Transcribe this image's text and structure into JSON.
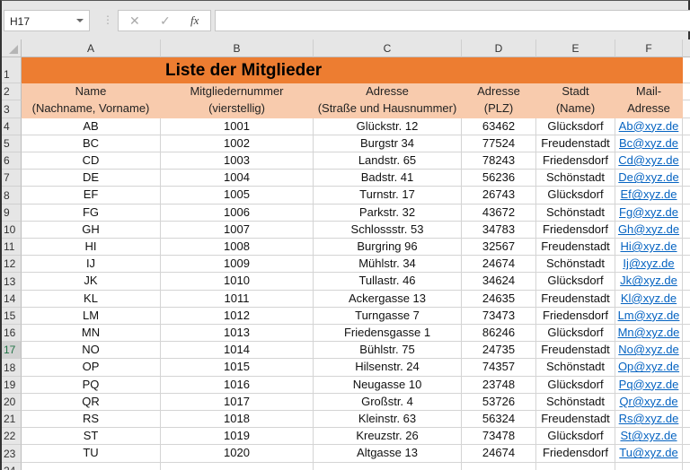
{
  "formula_bar": {
    "name_box": "H17",
    "cancel_icon": "✕",
    "enter_icon": "✓",
    "fx_label": "fx",
    "formula": ""
  },
  "columns": [
    "A",
    "B",
    "C",
    "D",
    "E",
    "F"
  ],
  "selected_row": 17,
  "colors": {
    "title_fill": "#ed7d31",
    "header_fill": "#f8cbad",
    "link": "#0563c1"
  },
  "sheet": {
    "title": "Liste der Mitglieder",
    "header_row2": [
      "Name",
      "Mitgliedernummer",
      "Adresse",
      "Adresse",
      "Stadt",
      "Mail-"
    ],
    "header_row3": [
      "(Nachname, Vorname)",
      "(vierstellig)",
      "(Straße und Hausnummer)",
      "(PLZ)",
      "(Name)",
      "Adresse"
    ],
    "rows": [
      [
        "AB",
        "1001",
        "Glückstr. 12",
        "63462",
        "Glücksdorf",
        "Ab@xyz.de"
      ],
      [
        "BC",
        "1002",
        "Burgstr 34",
        "77524",
        "Freudenstadt",
        "Bc@xyz.de"
      ],
      [
        "CD",
        "1003",
        "Landstr. 65",
        "78243",
        "Friedensdorf",
        "Cd@xyz.de"
      ],
      [
        "DE",
        "1004",
        "Badstr. 41",
        "56236",
        "Schönstadt",
        "De@xyz.de"
      ],
      [
        "EF",
        "1005",
        "Turnstr. 17",
        "26743",
        "Glücksdorf",
        "Ef@xyz.de"
      ],
      [
        "FG",
        "1006",
        "Parkstr. 32",
        "43672",
        "Schönstadt",
        "Fg@xyz.de"
      ],
      [
        "GH",
        "1007",
        "Schlossstr. 53",
        "34783",
        "Friedensdorf",
        "Gh@xyz.de"
      ],
      [
        "HI",
        "1008",
        "Burgring 96",
        "32567",
        "Freudenstadt",
        "Hi@xyz.de"
      ],
      [
        "IJ",
        "1009",
        "Mühlstr. 34",
        "24674",
        "Schönstadt",
        "Ij@xyz.de"
      ],
      [
        "JK",
        "1010",
        "Tullastr. 46",
        "34624",
        "Glücksdorf",
        "Jk@xyz.de"
      ],
      [
        "KL",
        "1011",
        "Ackergasse 13",
        "24635",
        "Freudenstadt",
        "Kl@xyz.de"
      ],
      [
        "LM",
        "1012",
        "Turngasse 7",
        "73473",
        "Friedensdorf",
        "Lm@xyz.de"
      ],
      [
        "MN",
        "1013",
        "Friedensgasse 1",
        "86246",
        "Glücksdorf",
        "Mn@xyz.de"
      ],
      [
        "NO",
        "1014",
        "Bühlstr. 75",
        "24735",
        "Freudenstadt",
        "No@xyz.de"
      ],
      [
        "OP",
        "1015",
        "Hilsenstr. 24",
        "74357",
        "Schönstadt",
        "Op@xyz.de"
      ],
      [
        "PQ",
        "1016",
        "Neugasse 10",
        "23748",
        "Glücksdorf",
        "Pq@xyz.de"
      ],
      [
        "QR",
        "1017",
        "Großstr. 4",
        "53726",
        "Schönstadt",
        "Qr@xyz.de"
      ],
      [
        "RS",
        "1018",
        "Kleinstr. 63",
        "56324",
        "Freudenstadt",
        "Rs@xyz.de"
      ],
      [
        "ST",
        "1019",
        "Kreuzstr. 26",
        "73478",
        "Glücksdorf",
        "St@xyz.de"
      ],
      [
        "TU",
        "1020",
        "Altgasse 13",
        "24674",
        "Friedensdorf",
        "Tu@xyz.de"
      ]
    ]
  }
}
